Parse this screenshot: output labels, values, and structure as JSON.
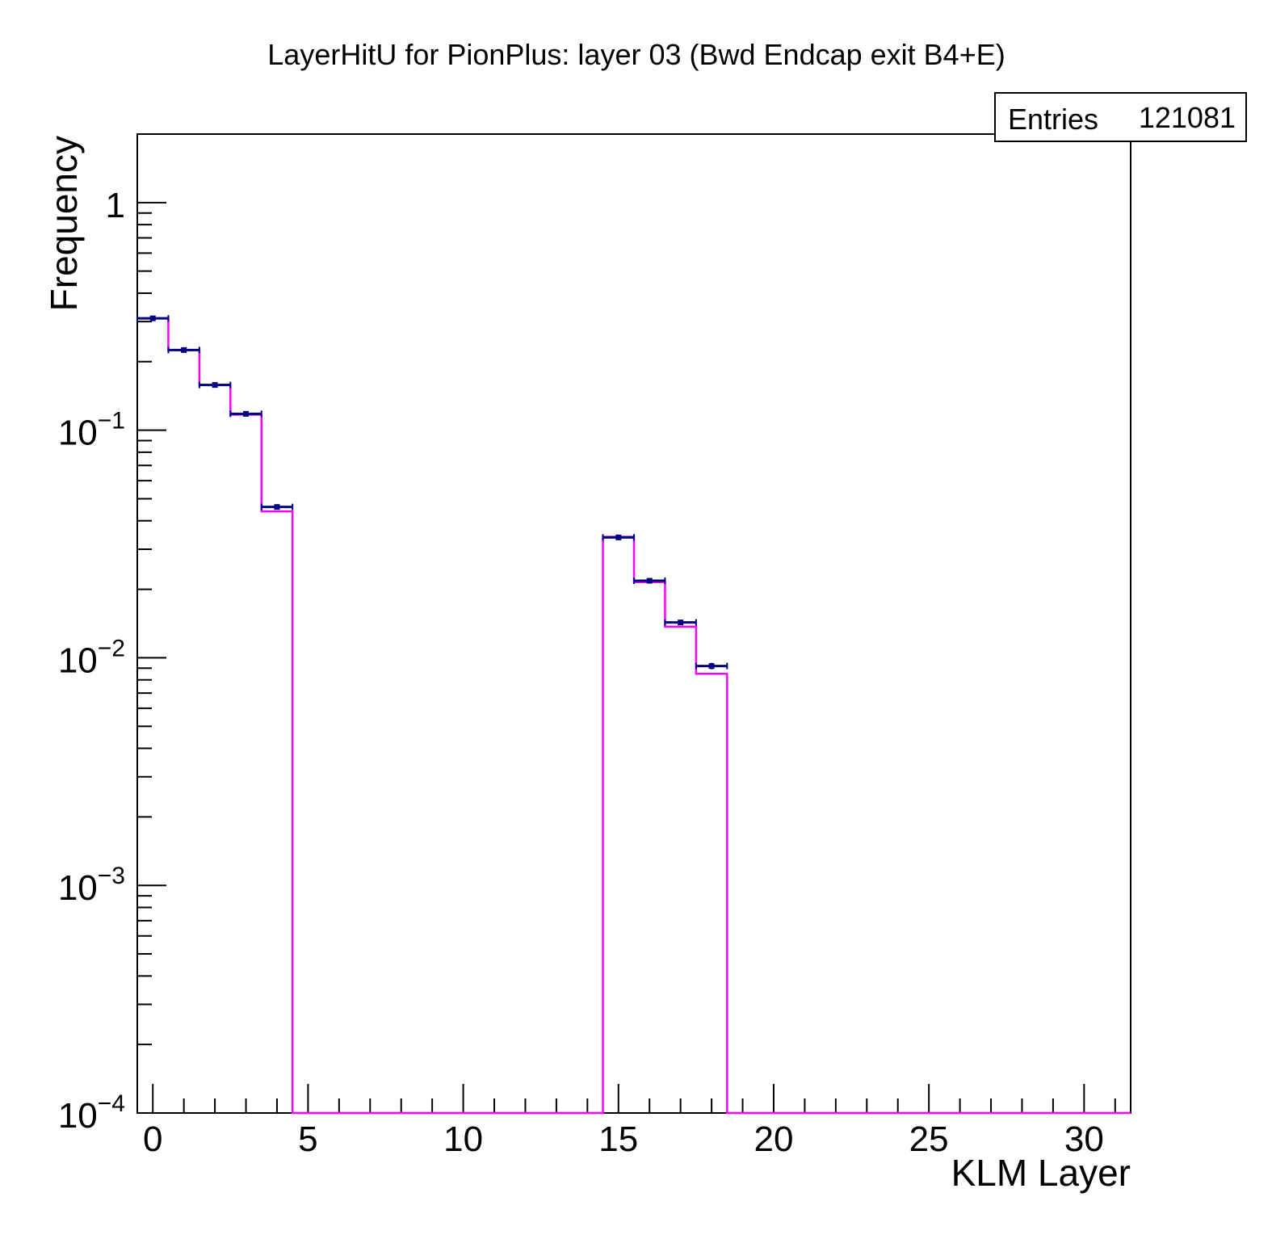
{
  "chart_data": {
    "type": "histogram",
    "title": "LayerHitU for PionPlus: layer 03 (Bwd Endcap exit B4+E)",
    "xlabel": "KLM Layer",
    "ylabel": "Frequency",
    "xlim": [
      -0.5,
      31.5
    ],
    "ylim": [
      0.0001,
      2
    ],
    "y_scale": "log",
    "grid": false,
    "x_ticks": [
      0,
      5,
      10,
      15,
      20,
      25,
      30
    ],
    "x_tick_labels": [
      "0",
      "5",
      "10",
      "15",
      "20",
      "25",
      "30"
    ],
    "y_ticks": [
      1,
      0.1,
      0.01,
      0.001,
      0.0001
    ],
    "y_tick_labels": [
      {
        "base": "1",
        "exp": ""
      },
      {
        "base": "10",
        "exp": "−1"
      },
      {
        "base": "10",
        "exp": "−2"
      },
      {
        "base": "10",
        "exp": "−3"
      },
      {
        "base": "10",
        "exp": "−4"
      }
    ],
    "stats_box": {
      "label": "Entries",
      "value": "121081",
      "placement": "top-right"
    },
    "bin_edges": [
      -0.5,
      0.5,
      1.5,
      2.5,
      3.5,
      4.5,
      14.5,
      15.5,
      16.5,
      17.5,
      18.5,
      31.5
    ],
    "series": [
      {
        "kind": "step",
        "color": "#ff00ff",
        "x": [
          0,
          1,
          2,
          3,
          4,
          15,
          16,
          17,
          18
        ],
        "values": [
          0.31,
          0.225,
          0.158,
          0.117,
          0.044,
          0.034,
          0.0215,
          0.0137,
          0.0085
        ]
      },
      {
        "kind": "points_with_errors",
        "color": "#000080",
        "x": [
          0,
          1,
          2,
          3,
          4,
          15,
          16,
          17,
          18
        ],
        "values": [
          0.31,
          0.225,
          0.158,
          0.118,
          0.046,
          0.0338,
          0.0218,
          0.0143,
          0.0092
        ],
        "errors": [
          0.0016,
          0.0014,
          0.0011,
          0.001,
          0.0006,
          0.0005,
          0.0004,
          0.0003,
          0.0003
        ]
      }
    ]
  }
}
